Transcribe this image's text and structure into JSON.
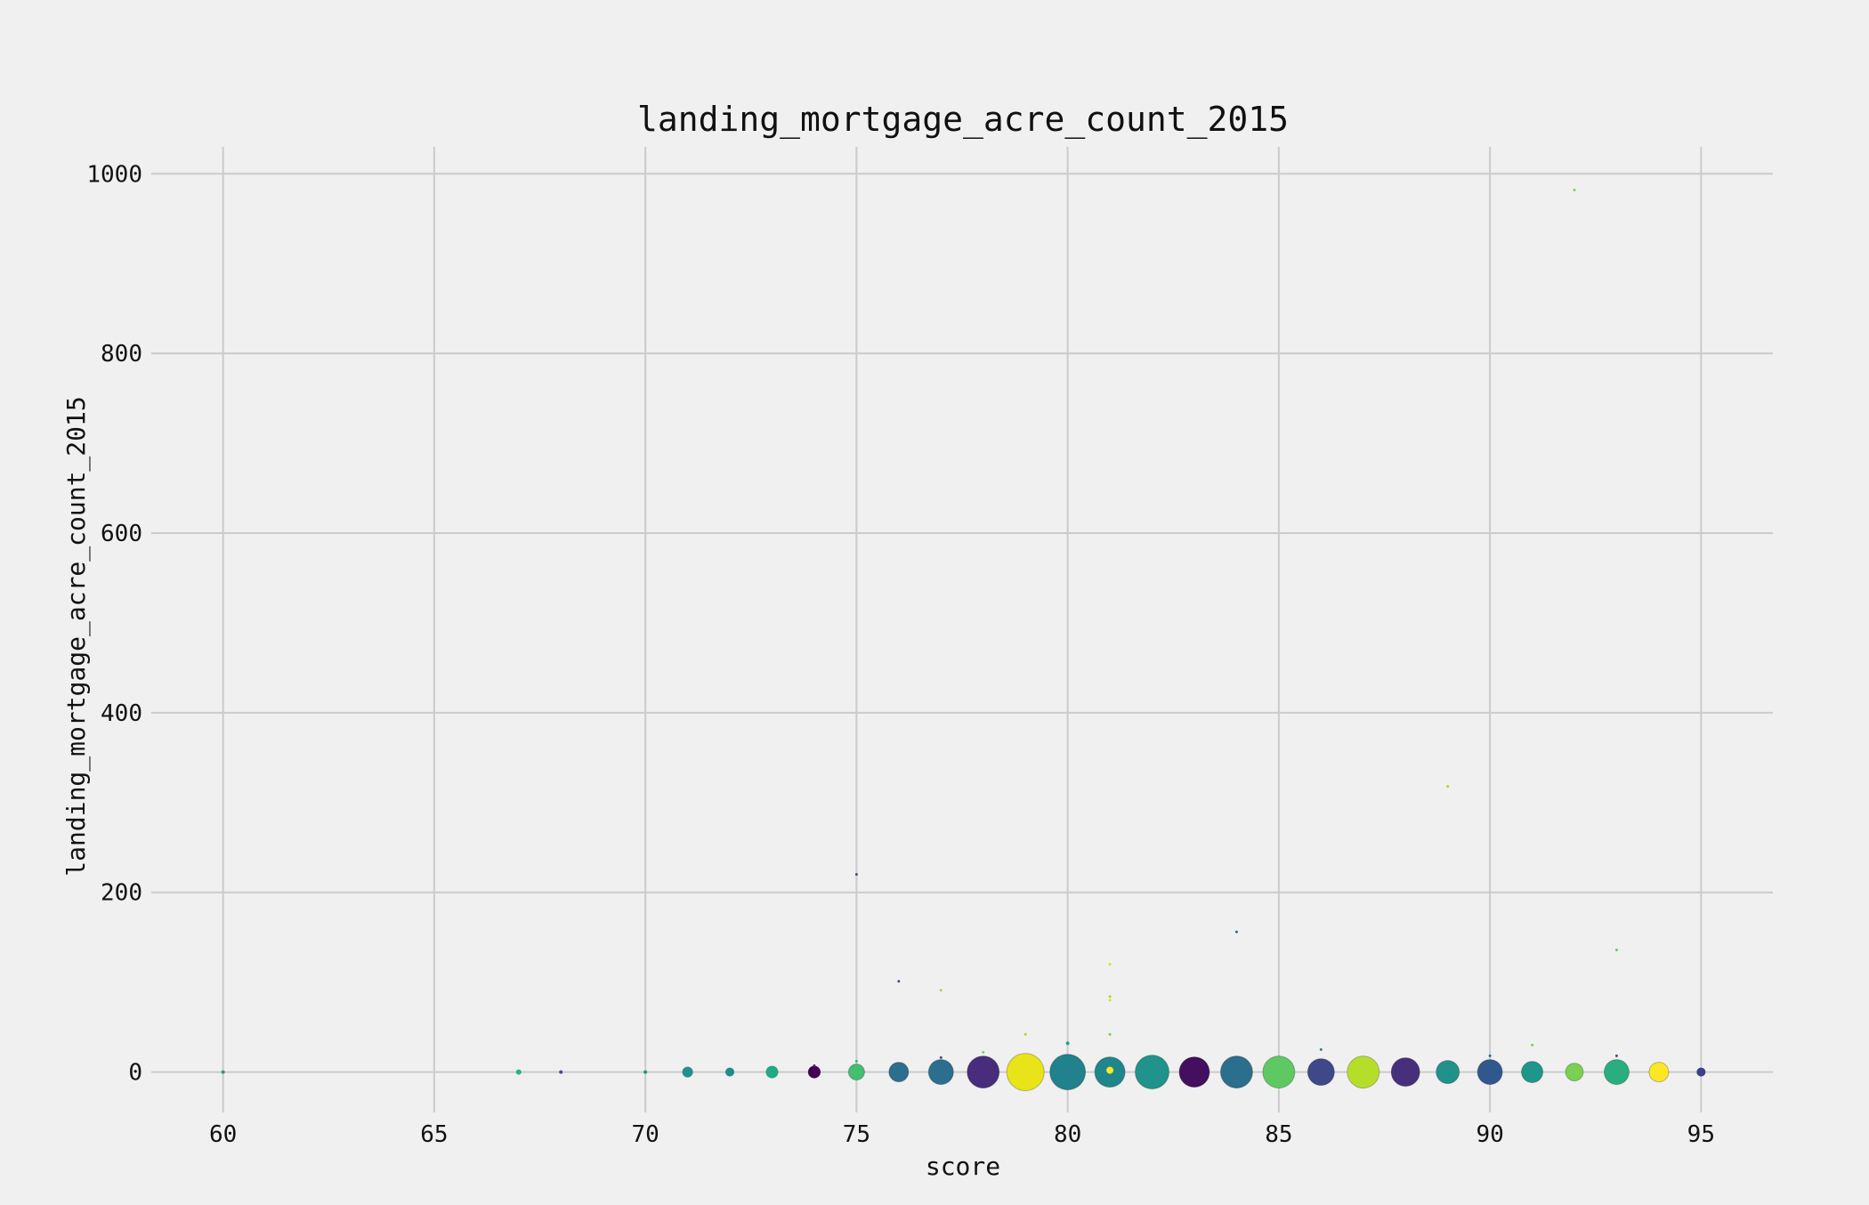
{
  "chart_data": {
    "type": "scatter",
    "title": "landing_mortgage_acre_count_2015",
    "xlabel": "score",
    "ylabel": "landing_mortgage_acre_count_2015",
    "xlim": [
      58.3,
      96.7
    ],
    "ylim": [
      -45,
      1030
    ],
    "xticks": [
      60,
      65,
      70,
      75,
      80,
      85,
      90,
      95
    ],
    "yticks": [
      0,
      200,
      400,
      600,
      800,
      1000
    ],
    "grid": true,
    "legend": "none",
    "colormap": "viridis",
    "points": [
      {
        "x": 60,
        "y": 0,
        "size": 2,
        "color": "#2a9d7f"
      },
      {
        "x": 67,
        "y": 0,
        "size": 3,
        "color": "#2db27d"
      },
      {
        "x": 68,
        "y": 0,
        "size": 2,
        "color": "#3b528b"
      },
      {
        "x": 70,
        "y": 0,
        "size": 2,
        "color": "#21918c"
      },
      {
        "x": 71,
        "y": 0,
        "size": 6,
        "color": "#21918c"
      },
      {
        "x": 72,
        "y": 0,
        "size": 5,
        "color": "#238a8d"
      },
      {
        "x": 73,
        "y": 0,
        "size": 7,
        "color": "#22a884"
      },
      {
        "x": 74,
        "y": 0,
        "size": 7,
        "color": "#440154"
      },
      {
        "x": 74,
        "y": 7,
        "size": 1.5,
        "color": "#482878"
      },
      {
        "x": 75,
        "y": 0,
        "size": 9,
        "color": "#44bf70"
      },
      {
        "x": 75,
        "y": 12,
        "size": 1.5,
        "color": "#35b779"
      },
      {
        "x": 75,
        "y": 220,
        "size": 1.5,
        "color": "#3b528b"
      },
      {
        "x": 76,
        "y": 0,
        "size": 11,
        "color": "#2c6e8e"
      },
      {
        "x": 76,
        "y": 101,
        "size": 1.5,
        "color": "#3b528b"
      },
      {
        "x": 77,
        "y": 0,
        "size": 14,
        "color": "#2c6e8e"
      },
      {
        "x": 77,
        "y": 16,
        "size": 1.5,
        "color": "#3b528b"
      },
      {
        "x": 77,
        "y": 91,
        "size": 1.5,
        "color": "#a0da39"
      },
      {
        "x": 78,
        "y": 0,
        "size": 18,
        "color": "#472d7b"
      },
      {
        "x": 78,
        "y": 22,
        "size": 1.5,
        "color": "#7ad151"
      },
      {
        "x": 79,
        "y": 0,
        "size": 21,
        "color": "#e8e419"
      },
      {
        "x": 79,
        "y": 42,
        "size": 1.5,
        "color": "#a0da39"
      },
      {
        "x": 80,
        "y": 0,
        "size": 20,
        "color": "#21818c"
      },
      {
        "x": 80,
        "y": 32,
        "size": 2,
        "color": "#22a884"
      },
      {
        "x": 81,
        "y": 0,
        "size": 17,
        "color": "#1f868c"
      },
      {
        "x": 81,
        "y": 2,
        "size": 4,
        "color": "#fde725"
      },
      {
        "x": 81,
        "y": 42,
        "size": 1.5,
        "color": "#7ad151"
      },
      {
        "x": 81,
        "y": 80,
        "size": 1.5,
        "color": "#d8e219"
      },
      {
        "x": 81,
        "y": 84,
        "size": 1.5,
        "color": "#a0da39"
      },
      {
        "x": 81,
        "y": 120,
        "size": 1.5,
        "color": "#d8e219"
      },
      {
        "x": 82,
        "y": 0,
        "size": 19,
        "color": "#20938c"
      },
      {
        "x": 83,
        "y": 0,
        "size": 17,
        "color": "#440f5f"
      },
      {
        "x": 84,
        "y": 0,
        "size": 18,
        "color": "#2c6e8e"
      },
      {
        "x": 84,
        "y": 156,
        "size": 1.5,
        "color": "#31688e"
      },
      {
        "x": 85,
        "y": 0,
        "size": 18,
        "color": "#5ec962"
      },
      {
        "x": 86,
        "y": 0,
        "size": 15,
        "color": "#3f4889"
      },
      {
        "x": 86,
        "y": 25,
        "size": 1.5,
        "color": "#277f8e"
      },
      {
        "x": 87,
        "y": 0,
        "size": 18,
        "color": "#b5de2b"
      },
      {
        "x": 88,
        "y": 0,
        "size": 16,
        "color": "#46307c"
      },
      {
        "x": 89,
        "y": 0,
        "size": 13,
        "color": "#21918c"
      },
      {
        "x": 89,
        "y": 318,
        "size": 1.5,
        "color": "#a0da39"
      },
      {
        "x": 90,
        "y": 0,
        "size": 14,
        "color": "#31588e"
      },
      {
        "x": 90,
        "y": 18,
        "size": 1.5,
        "color": "#31688e"
      },
      {
        "x": 91,
        "y": 0,
        "size": 12,
        "color": "#1f968b"
      },
      {
        "x": 91,
        "y": 30,
        "size": 1.5,
        "color": "#7ad151"
      },
      {
        "x": 92,
        "y": 0,
        "size": 10,
        "color": "#7ad151"
      },
      {
        "x": 92,
        "y": 982,
        "size": 1.5,
        "color": "#7ad151"
      },
      {
        "x": 93,
        "y": 0,
        "size": 14,
        "color": "#29af7f"
      },
      {
        "x": 93,
        "y": 18,
        "size": 1.5,
        "color": "#3b528b"
      },
      {
        "x": 93,
        "y": 136,
        "size": 1.5,
        "color": "#5ec962"
      },
      {
        "x": 94,
        "y": 0,
        "size": 11,
        "color": "#fde725"
      },
      {
        "x": 95,
        "y": 0,
        "size": 5,
        "color": "#3b3f8a"
      }
    ]
  }
}
